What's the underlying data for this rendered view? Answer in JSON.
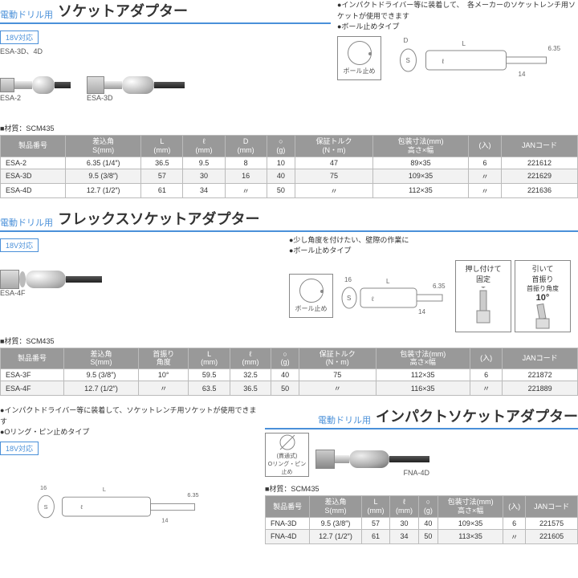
{
  "section1": {
    "category": "電動ドリル用",
    "name": "ソケットアダプター",
    "badge": "18V対応",
    "subcode": "ESA-3D、4D",
    "notes": [
      "●インパクトドライバー等に装着して、　各メーカーのソケットレンチ用ソケットが使用できます",
      "●ボール止めタイプ"
    ],
    "art_labels": {
      "a": "ESA-2",
      "b": "ESA-3D"
    },
    "ball_label": "ボール止め",
    "dims": {
      "D": "D",
      "S": "S",
      "L": "L",
      "l": "ℓ",
      "hex": "6.35",
      "shank": "14"
    },
    "material": "■材質：SCM435",
    "columns": [
      "製品番号",
      "差込角\nS(mm)",
      "L\n(mm)",
      "ℓ\n(mm)",
      "D\n(mm)",
      "○\n(g)",
      "保証トルク\n(N・m)",
      "包装寸法(mm)\n高さ×幅",
      "(入)",
      "JANコード"
    ],
    "rows": [
      [
        "ESA-2",
        "6.35 (1/4″)",
        "36.5",
        "9.5",
        "8",
        "10",
        "47",
        "89×35",
        "6",
        "221612"
      ],
      [
        "ESA-3D",
        "9.5 (3/8″)",
        "57",
        "30",
        "16",
        "40",
        "75",
        "109×35",
        "〃",
        "221629"
      ],
      [
        "ESA-4D",
        "12.7 (1/2″)",
        "61",
        "34",
        "〃",
        "50",
        "〃",
        "112×35",
        "〃",
        "221636"
      ]
    ]
  },
  "section2": {
    "category": "電動ドリル用",
    "name": "フレックスソケットアダプター",
    "badge": "18V対応",
    "notes": [
      "●少し角度を付けたい、壁際の作業に",
      "●ボール止めタイプ"
    ],
    "art_label": "ESA-4F",
    "ball_label": "ボール止め",
    "dims": {
      "S": "S",
      "s16": "16",
      "L": "L",
      "l": "ℓ",
      "hex": "6.35",
      "shank": "14"
    },
    "action1": {
      "t1": "押し付けて",
      "t2": "固定"
    },
    "action2": {
      "t1": "引いて",
      "t2": "首振り",
      "sub": "首振り角度",
      "angle": "10°"
    },
    "material": "■材質：SCM435",
    "columns": [
      "製品番号",
      "差込角\nS(mm)",
      "首振り\n角度",
      "L\n(mm)",
      "ℓ\n(mm)",
      "○\n(g)",
      "保証トルク\n(N・m)",
      "包装寸法(mm)\n高さ×幅",
      "(入)",
      "JANコード"
    ],
    "rows": [
      [
        "ESA-3F",
        "9.5 (3/8″)",
        "10°",
        "59.5",
        "32.5",
        "40",
        "75",
        "112×35",
        "6",
        "221872"
      ],
      [
        "ESA-4F",
        "12.7 (1/2″)",
        "〃",
        "63.5",
        "36.5",
        "50",
        "〃",
        "116×35",
        "〃",
        "221889"
      ]
    ]
  },
  "section3": {
    "category": "電動ドリル用",
    "name": "インパクトソケットアダプター",
    "badge": "18V対応",
    "notes": [
      "●インパクトドライバー等に装着して、ソケットレンチ用ソケットが使用できます",
      "●Oリング・ピン止めタイプ"
    ],
    "oring": {
      "line1": "(貫通式)",
      "line2": "Oリング・ピン止め"
    },
    "art_label": "FNA-4D",
    "dims": {
      "S": "S",
      "s16": "16",
      "L": "L",
      "l": "ℓ",
      "hex": "6.35",
      "shank": "14"
    },
    "material": "■材質：SCM435",
    "columns": [
      "製品番号",
      "差込角\nS(mm)",
      "L\n(mm)",
      "ℓ\n(mm)",
      "○\n(g)",
      "包装寸法(mm)\n高さ×幅",
      "(入)",
      "JANコード"
    ],
    "rows": [
      [
        "FNA-3D",
        "9.5 (3/8″)",
        "57",
        "30",
        "40",
        "109×35",
        "6",
        "221575"
      ],
      [
        "FNA-4D",
        "12.7 (1/2″)",
        "61",
        "34",
        "50",
        "113×35",
        "〃",
        "221605"
      ]
    ]
  }
}
